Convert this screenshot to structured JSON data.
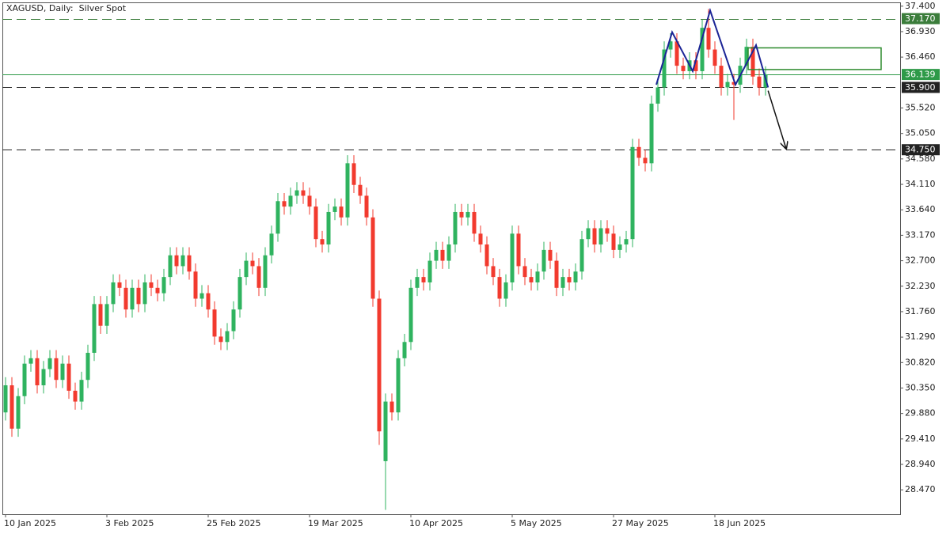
{
  "chart_data": {
    "type": "candlestick",
    "title": "XAGUSD, Daily:  Silver Spot",
    "up_color": "#2fb35f",
    "down_color": "#f23a2e",
    "categories": [
      "10 Jan 2025",
      null,
      null,
      null,
      null,
      null,
      null,
      null,
      null,
      null,
      null,
      null,
      null,
      null,
      null,
      null,
      "3 Feb 2025",
      null,
      null,
      null,
      null,
      null,
      null,
      null,
      null,
      null,
      null,
      null,
      null,
      null,
      null,
      null,
      "25 Feb 2025",
      null,
      null,
      null,
      null,
      null,
      null,
      null,
      null,
      null,
      null,
      null,
      null,
      null,
      null,
      null,
      "19 Mar 2025",
      null,
      null,
      null,
      null,
      null,
      null,
      null,
      null,
      null,
      null,
      null,
      null,
      null,
      null,
      null,
      "10 Apr 2025",
      null,
      null,
      null,
      null,
      null,
      null,
      null,
      null,
      null,
      null,
      null,
      null,
      null,
      null,
      null,
      "5 May 2025",
      null,
      null,
      null,
      null,
      null,
      null,
      null,
      null,
      null,
      null,
      null,
      null,
      null,
      null,
      null,
      "27 May 2025",
      null,
      null,
      null,
      null,
      null,
      null,
      null,
      null,
      null,
      null,
      null,
      null,
      null,
      null,
      null,
      "18 Jun 2025",
      null,
      null,
      null,
      null,
      null,
      null,
      null,
      null
    ],
    "open": [
      29.9,
      30.4,
      29.6,
      30.2,
      30.8,
      30.9,
      30.4,
      30.7,
      30.9,
      30.5,
      30.8,
      30.3,
      30.1,
      30.5,
      31.0,
      31.9,
      31.5,
      31.9,
      32.3,
      32.2,
      31.8,
      32.2,
      31.9,
      32.3,
      32.2,
      32.1,
      32.4,
      32.8,
      32.6,
      32.8,
      32.5,
      32.0,
      32.1,
      31.8,
      31.3,
      31.2,
      31.4,
      31.8,
      32.4,
      32.7,
      32.6,
      32.2,
      32.8,
      33.2,
      33.8,
      33.7,
      33.9,
      34.0,
      33.9,
      33.7,
      33.1,
      33.0,
      33.6,
      33.7,
      33.5,
      34.5,
      34.1,
      33.9,
      33.5,
      32.0,
      29.0,
      30.1,
      29.9,
      30.9,
      31.2,
      32.2,
      32.4,
      32.3,
      32.7,
      32.9,
      32.7,
      33.0,
      33.6,
      33.5,
      33.6,
      33.2,
      33.0,
      32.6,
      32.4,
      32.0,
      32.3,
      33.2,
      32.6,
      32.4,
      32.3,
      32.5,
      32.9,
      32.7,
      32.2,
      32.4,
      32.3,
      32.5,
      33.1,
      33.3,
      33.0,
      33.3,
      33.2,
      32.9,
      33.0,
      33.1,
      34.8,
      34.6,
      34.5,
      35.6,
      35.9,
      36.6,
      36.75,
      36.3,
      36.2,
      36.4,
      36.2,
      37.0,
      36.6,
      36.3,
      35.9,
      36.0,
      35.95,
      36.3,
      36.65,
      36.1,
      35.9
    ],
    "high": [
      30.55,
      30.55,
      30.35,
      30.95,
      31.05,
      31.05,
      30.85,
      31.05,
      31.05,
      30.95,
      30.95,
      30.45,
      30.65,
      31.15,
      32.05,
      32.05,
      32.05,
      32.45,
      32.45,
      32.35,
      32.35,
      32.35,
      32.45,
      32.45,
      32.35,
      32.55,
      32.95,
      32.95,
      32.95,
      32.95,
      32.65,
      32.25,
      32.25,
      31.95,
      31.45,
      31.55,
      31.95,
      32.55,
      32.85,
      32.85,
      32.75,
      32.95,
      33.35,
      33.95,
      33.95,
      34.05,
      34.15,
      34.15,
      34.05,
      33.85,
      33.25,
      33.75,
      33.85,
      33.85,
      34.65,
      34.65,
      34.25,
      34.05,
      33.65,
      32.15,
      30.25,
      30.25,
      31.05,
      31.35,
      32.35,
      32.55,
      32.55,
      32.85,
      33.05,
      33.05,
      33.15,
      33.75,
      33.75,
      33.75,
      33.75,
      33.35,
      33.15,
      32.75,
      32.55,
      32.45,
      33.35,
      33.35,
      32.75,
      32.55,
      32.65,
      33.05,
      33.05,
      32.85,
      32.55,
      32.55,
      32.65,
      33.25,
      33.45,
      33.45,
      33.45,
      33.45,
      33.35,
      33.15,
      33.25,
      34.95,
      34.95,
      34.75,
      35.75,
      36.05,
      36.75,
      36.9,
      36.9,
      36.45,
      36.55,
      36.55,
      37.15,
      37.35,
      36.75,
      36.45,
      36.15,
      36.15,
      36.45,
      36.8,
      36.8,
      36.25,
      36.29
    ],
    "low": [
      29.75,
      29.45,
      29.45,
      30.05,
      30.65,
      30.25,
      30.25,
      30.55,
      30.35,
      30.35,
      30.15,
      29.95,
      29.95,
      30.35,
      30.85,
      31.35,
      31.35,
      31.75,
      32.05,
      31.65,
      31.65,
      31.75,
      31.75,
      32.05,
      31.95,
      31.95,
      32.25,
      32.45,
      32.45,
      32.35,
      31.85,
      31.85,
      31.65,
      31.15,
      31.05,
      31.05,
      31.25,
      31.65,
      32.25,
      32.45,
      32.05,
      32.05,
      32.65,
      33.05,
      33.55,
      33.55,
      33.75,
      33.75,
      33.55,
      32.95,
      32.85,
      32.85,
      33.45,
      33.35,
      33.35,
      33.95,
      33.75,
      33.35,
      31.85,
      29.3,
      28.1,
      29.75,
      29.75,
      30.75,
      31.05,
      32.05,
      32.15,
      32.15,
      32.55,
      32.55,
      32.55,
      32.85,
      33.35,
      33.35,
      33.05,
      32.85,
      32.45,
      32.25,
      31.85,
      31.85,
      32.15,
      32.45,
      32.25,
      32.15,
      32.15,
      32.35,
      32.55,
      32.05,
      32.05,
      32.15,
      32.15,
      32.35,
      32.95,
      32.85,
      32.85,
      33.05,
      32.75,
      32.75,
      32.85,
      32.95,
      34.45,
      34.35,
      34.35,
      35.45,
      35.75,
      36.45,
      36.15,
      36.05,
      36.05,
      36.05,
      36.05,
      36.45,
      36.15,
      35.75,
      35.75,
      35.3,
      35.8,
      36.15,
      35.95,
      35.75,
      35.75
    ],
    "close": [
      30.4,
      29.6,
      30.2,
      30.8,
      30.9,
      30.4,
      30.7,
      30.9,
      30.5,
      30.8,
      30.3,
      30.1,
      30.5,
      31.0,
      31.9,
      31.5,
      31.9,
      32.3,
      32.2,
      31.8,
      32.2,
      31.9,
      32.3,
      32.2,
      32.1,
      32.4,
      32.8,
      32.6,
      32.8,
      32.5,
      32.0,
      32.1,
      31.8,
      31.3,
      31.2,
      31.4,
      31.8,
      32.4,
      32.7,
      32.6,
      32.2,
      32.8,
      33.2,
      33.8,
      33.7,
      33.9,
      34.0,
      33.9,
      33.7,
      33.1,
      33.0,
      33.6,
      33.7,
      33.5,
      34.5,
      34.1,
      33.9,
      33.5,
      32.0,
      29.55,
      30.1,
      29.9,
      30.9,
      31.2,
      32.2,
      32.4,
      32.3,
      32.7,
      32.9,
      32.7,
      33.0,
      33.6,
      33.5,
      33.6,
      33.2,
      33.0,
      32.6,
      32.4,
      32.0,
      32.3,
      33.2,
      32.6,
      32.4,
      32.3,
      32.5,
      32.9,
      32.7,
      32.2,
      32.4,
      32.3,
      32.5,
      33.1,
      33.3,
      33.0,
      33.3,
      33.2,
      32.9,
      33.0,
      33.1,
      34.8,
      34.6,
      34.5,
      35.6,
      35.9,
      36.6,
      36.75,
      36.3,
      36.2,
      36.4,
      36.2,
      37.0,
      36.6,
      36.3,
      35.9,
      36.0,
      35.95,
      36.3,
      36.65,
      36.1,
      35.9,
      36.139
    ],
    "ylim": [
      28.02,
      37.47
    ],
    "yticks": [
      {
        "value": 37.4,
        "label": "37.400"
      },
      {
        "value": 36.93,
        "label": "36.930"
      },
      {
        "value": 36.46,
        "label": "36.460"
      },
      {
        "value": 35.52,
        "label": "35.520"
      },
      {
        "value": 35.05,
        "label": "35.050"
      },
      {
        "value": 34.58,
        "label": "34.580"
      },
      {
        "value": 34.11,
        "label": "34.110"
      },
      {
        "value": 33.64,
        "label": "33.640"
      },
      {
        "value": 33.17,
        "label": "33.170"
      },
      {
        "value": 32.7,
        "label": "32.700"
      },
      {
        "value": 32.23,
        "label": "32.230"
      },
      {
        "value": 31.76,
        "label": "31.760"
      },
      {
        "value": 31.29,
        "label": "31.290"
      },
      {
        "value": 30.82,
        "label": "30.820"
      },
      {
        "value": 30.35,
        "label": "30.350"
      },
      {
        "value": 29.88,
        "label": "29.880"
      },
      {
        "value": 29.41,
        "label": "29.410"
      },
      {
        "value": 28.94,
        "label": "28.940"
      },
      {
        "value": 28.47,
        "label": "28.470"
      }
    ],
    "levels": [
      {
        "value": 37.17,
        "label": "37.170",
        "color": "#3b7d3b",
        "style": "dashed"
      },
      {
        "value": 36.139,
        "label": "36.139",
        "color": "#2e9a48",
        "style": "solid"
      },
      {
        "value": 35.9,
        "label": "35.900",
        "color": "#222222",
        "style": "dashed"
      },
      {
        "value": 34.75,
        "label": "34.750",
        "color": "#222222",
        "style": "dashed"
      }
    ],
    "pattern": {
      "color": "#1c2596",
      "x": [
        102.75,
        105.25,
        108.5,
        111.25,
        115.25,
        118.5,
        120.4
      ],
      "y": [
        35.95,
        36.92,
        36.2,
        37.32,
        35.95,
        36.68,
        35.9
      ]
    },
    "arrow": {
      "color": "#111111",
      "x": [
        120.4,
        123.25
      ],
      "y": [
        35.84,
        34.77
      ]
    },
    "zone": {
      "color": "#2e8b2e",
      "x": [
        117.25,
        138.25
      ],
      "y": [
        36.23,
        36.63
      ]
    }
  }
}
